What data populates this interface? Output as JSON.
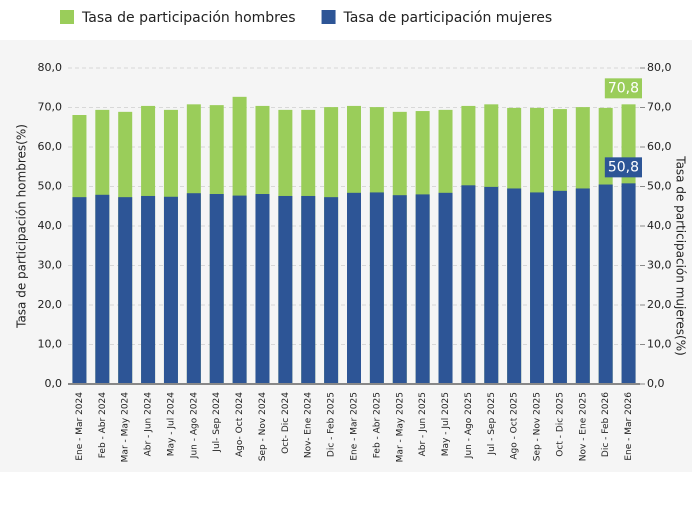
{
  "chart_data": {
    "type": "overlap-bar",
    "categories": [
      "Ene - Mar 2024",
      "Feb - Abr 2024",
      "Mar - May 2024",
      "Abr - Jun 2024",
      "May - Jul 2024",
      "Jun - Ago 2024",
      "Jul- Sep 2024",
      "Ago- Oct 2024",
      "Sep - Nov 2024",
      "Oct- Dic 2024",
      "Nov- Ene 2024",
      "Dic - Feb 2025",
      "Ene - Mar 2025",
      "Feb - Abr 2025",
      "Mar - May 2025",
      "Abr - Jun 2025",
      "May - Jul 2025",
      "Jun - Ago 2025",
      "Jul - Sep 2025",
      "Ago - Oct 2025",
      "Sep - Nov 2025",
      "Oct - Dic 2025",
      "Nov - Ene 2025",
      "Dic - Feb 2026",
      "Ene - Mar 2026"
    ],
    "series": [
      {
        "name": "Tasa de participación hombres",
        "color": "#9acd5a",
        "values": [
          68.1,
          69.4,
          68.9,
          70.4,
          69.4,
          70.8,
          70.6,
          72.7,
          70.4,
          69.4,
          69.4,
          70.1,
          70.4,
          70.1,
          68.9,
          69.1,
          69.4,
          70.4,
          70.8,
          69.9,
          69.9,
          69.6,
          70.1,
          69.9,
          70.8
        ],
        "value_labels": [
          null,
          null,
          null,
          null,
          null,
          null,
          null,
          null,
          null,
          null,
          null,
          null,
          null,
          null,
          null,
          null,
          null,
          null,
          null,
          null,
          null,
          null,
          null,
          null,
          "70,8"
        ]
      },
      {
        "name": "Tasa de participación mujeres",
        "color": "#2d5596",
        "axis": "y2",
        "values": [
          47.3,
          47.9,
          47.3,
          47.6,
          47.4,
          48.3,
          48.1,
          47.7,
          48.1,
          47.6,
          47.6,
          47.3,
          48.4,
          48.5,
          47.8,
          48.0,
          48.4,
          50.3,
          49.9,
          49.5,
          48.5,
          48.9,
          49.5,
          50.5,
          50.8
        ],
        "value_labels": [
          null,
          null,
          null,
          null,
          null,
          null,
          null,
          null,
          null,
          null,
          null,
          null,
          null,
          null,
          null,
          null,
          null,
          null,
          null,
          null,
          null,
          null,
          null,
          null,
          "50,8"
        ]
      }
    ],
    "y_label": "Tasa de participación hombres(%)",
    "y2_label": "Tasa de participación mujeres(%)",
    "ylim": [
      0,
      80
    ],
    "yticks": [
      {
        "value": 0,
        "label": "0,0"
      },
      {
        "value": 10,
        "label": "10,0"
      },
      {
        "value": 20,
        "label": "20,0"
      },
      {
        "value": 30,
        "label": "30,0"
      },
      {
        "value": 40,
        "label": "40,0"
      },
      {
        "value": 50,
        "label": "50,0"
      },
      {
        "value": 60,
        "label": "60,0"
      },
      {
        "value": 70,
        "label": "70,0"
      },
      {
        "value": 80,
        "label": "80,0"
      }
    ],
    "y2lim": [
      0,
      80
    ],
    "y2ticks": [
      {
        "value": 0,
        "label": "0,0"
      },
      {
        "value": 10,
        "label": "10,0"
      },
      {
        "value": 20,
        "label": "20,0"
      },
      {
        "value": 30,
        "label": "30,0"
      },
      {
        "value": 40,
        "label": "40,0"
      },
      {
        "value": 50,
        "label": "50,0"
      },
      {
        "value": 60,
        "label": "60,0"
      },
      {
        "value": 70,
        "label": "70,0"
      },
      {
        "value": 80,
        "label": "80,0"
      }
    ],
    "grid": true,
    "legend": "top"
  }
}
